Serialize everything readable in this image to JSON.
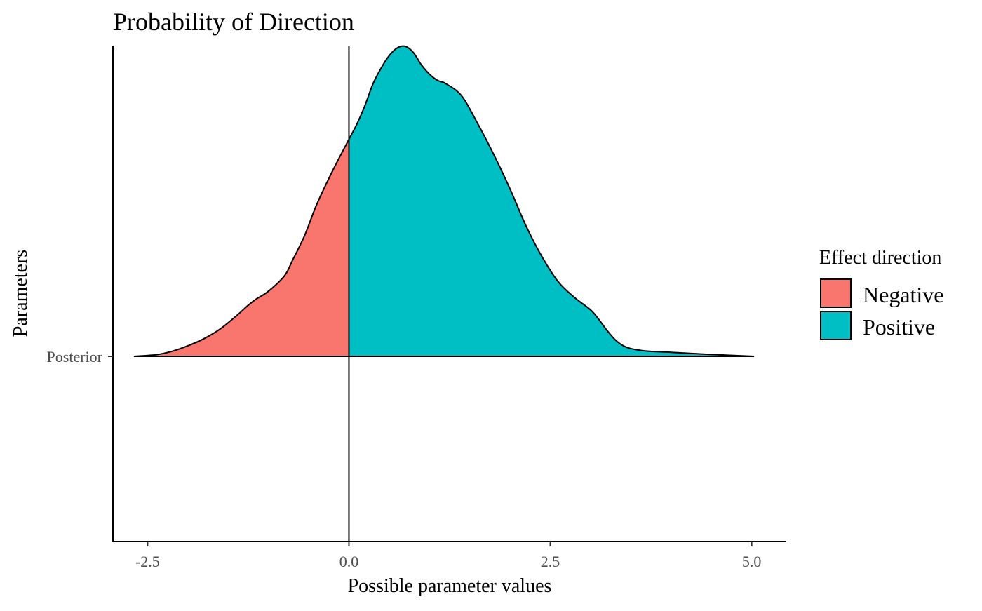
{
  "chart_data": {
    "type": "area",
    "title": "Probability of Direction",
    "xlabel": "Possible parameter values",
    "ylabel": "Parameters",
    "xlim": [
      -2.93,
      5.43
    ],
    "x_ticks": [
      -2.5,
      0.0,
      2.5,
      5.0
    ],
    "x_tick_labels": [
      "-2.5",
      "0.0",
      "2.5",
      "5.0"
    ],
    "y_categories": [
      "Posterior"
    ],
    "reference_line_x": 0,
    "grid": false,
    "legend": {
      "title": "Effect direction",
      "position": "right",
      "entries": [
        {
          "label": "Negative",
          "color": "#F8766D"
        },
        {
          "label": "Positive",
          "color": "#00BFC4"
        }
      ]
    },
    "density": {
      "x": [
        -2.67,
        -2.4,
        -2.2,
        -2.0,
        -1.8,
        -1.6,
        -1.4,
        -1.25,
        -1.15,
        -1.0,
        -0.8,
        -0.7,
        -0.55,
        -0.4,
        -0.2,
        0.0,
        0.1,
        0.2,
        0.3,
        0.4,
        0.5,
        0.6,
        0.7,
        0.8,
        0.9,
        1.0,
        1.1,
        1.2,
        1.4,
        1.6,
        1.8,
        2.0,
        2.2,
        2.4,
        2.6,
        2.8,
        3.0,
        3.1,
        3.2,
        3.3,
        3.4,
        3.5,
        3.7,
        4.0,
        4.5,
        5.03
      ],
      "y": [
        0.0,
        0.005,
        0.016,
        0.034,
        0.057,
        0.088,
        0.13,
        0.165,
        0.185,
        0.21,
        0.26,
        0.31,
        0.39,
        0.49,
        0.6,
        0.7,
        0.75,
        0.81,
        0.88,
        0.93,
        0.97,
        0.995,
        1.0,
        0.98,
        0.94,
        0.91,
        0.89,
        0.88,
        0.84,
        0.75,
        0.65,
        0.54,
        0.42,
        0.32,
        0.24,
        0.19,
        0.15,
        0.12,
        0.085,
        0.055,
        0.035,
        0.025,
        0.017,
        0.013,
        0.006,
        0.0
      ]
    },
    "colors": {
      "negative_fill": "#F8766D",
      "positive_fill": "#00BFC4",
      "outline": "#000000",
      "axis": "#000000"
    }
  }
}
